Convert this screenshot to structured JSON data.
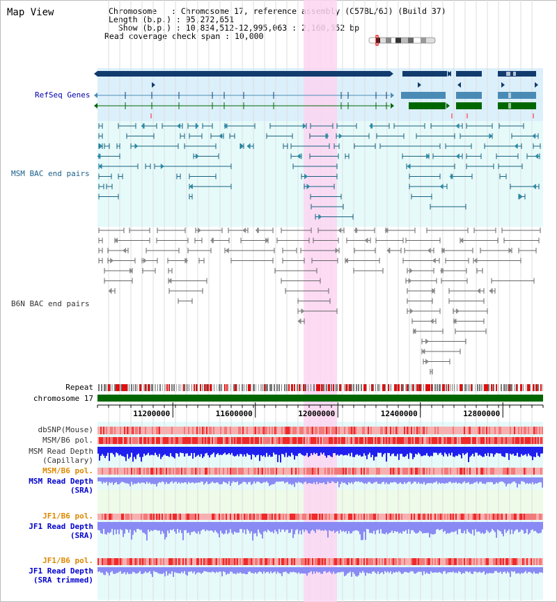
{
  "view": {
    "title": "Map View"
  },
  "info": {
    "chromosome_key": "Chromosome   : ",
    "chromosome_val": "Chromosome 17, reference assembly (C57BL/6J) (Build 37)",
    "length_key": "Length (b.p.) : ",
    "length_val": "95,272,651",
    "show_key": "  Show (b.p.) : ",
    "show_val": "10,834,512-12,995,063 : 2,160,552 bp",
    "coverage_key": "Read coverage check span : ",
    "coverage_val": "10,000"
  },
  "tracks": {
    "refseq": "RefSeq Genes",
    "msm_bac": "MSM BAC end pairs",
    "b6n_bac": "B6N BAC end pairs",
    "repeat": "Repeat",
    "chromosome": "chromosome 17",
    "dbsnp": "dbSNP(Mouse)",
    "msm_b6_pol": "MSM/B6 pol.",
    "msm_rd_cap_1": "MSM Read Depth",
    "msm_rd_cap_2": "(Capillary)",
    "msm_b6_pol2": "MSM/B6 pol.",
    "msm_rd_sra_1": "MSM Read Depth",
    "msm_rd_sra_2": "(SRA)",
    "jf1_b6_pol": "JF1/B6 pol.",
    "jf1_rd_sra_1": "JF1 Read Depth",
    "jf1_rd_sra_2": "(SRA)",
    "jf1_b6_pol2": "JF1/B6 pol.",
    "jf1_rd_trim_1": "JF1 Read Depth",
    "jf1_rd_trim_2": "(SRA trimmed)"
  },
  "axis": {
    "ticks": [
      "11200000",
      "11600000",
      "12000000",
      "12400000",
      "12800000"
    ],
    "tick_values": [
      11200000,
      11600000,
      12000000,
      12400000,
      12800000
    ],
    "start": 10834512,
    "end": 12995063
  },
  "highlight": {
    "start": 11834000,
    "end": 11996000
  },
  "colors": {
    "highlight": "#fbd5f1",
    "gene_dark": "#123b6e",
    "gene_mid": "#4a8bb5",
    "gene_green": "#006600",
    "msm_line": "#17607f",
    "b6n_line": "#666666",
    "chrom_green": "#006600",
    "depth_blue": "#1f1ff0",
    "depth_light": "#8a8af5",
    "pol_red": "#ee3030"
  }
}
